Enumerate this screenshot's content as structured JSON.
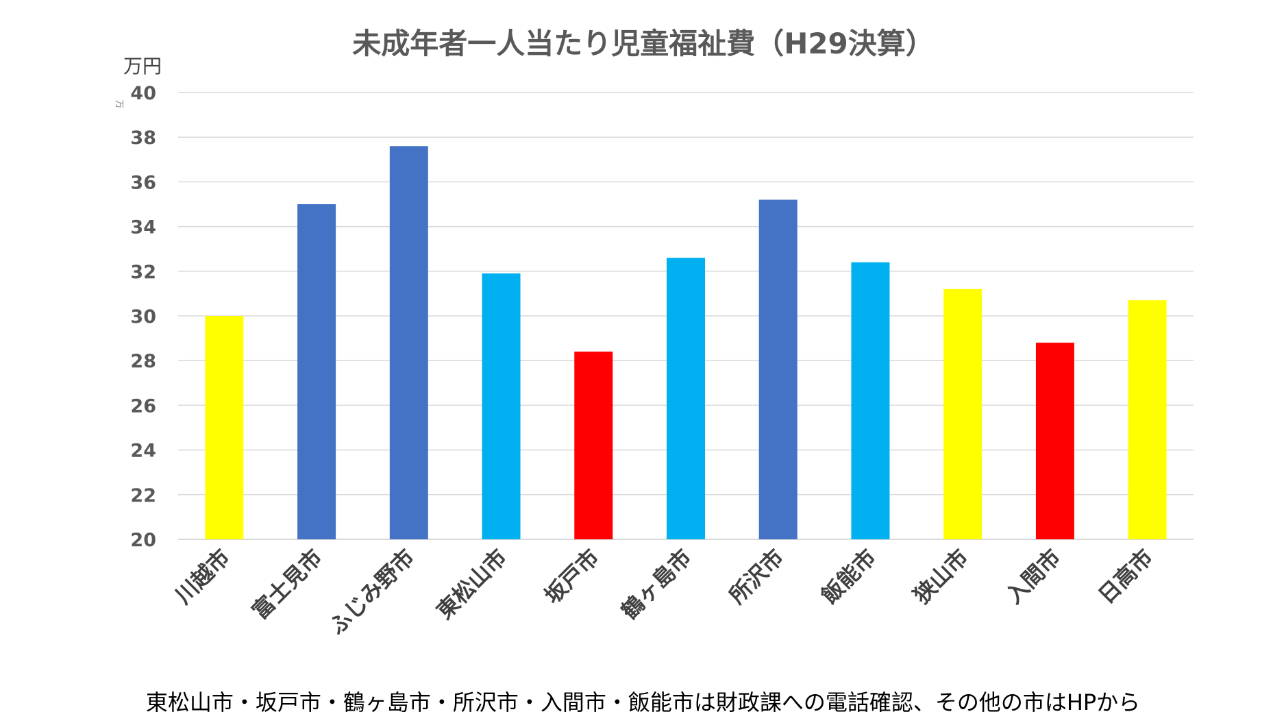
{
  "chart_data": {
    "type": "bar",
    "title": "未成年者一人当たり児童福祉費（H29決算）",
    "ylabel": "万円",
    "ylabel_small": "万",
    "ylim": [
      20,
      40
    ],
    "yticks": [
      20,
      22,
      24,
      26,
      28,
      30,
      32,
      34,
      36,
      38,
      40
    ],
    "grid": true,
    "categories": [
      "川越市",
      "富士見市",
      "ふじみ野市",
      "東松山市",
      "坂戸市",
      "鶴ヶ島市",
      "所沢市",
      "飯能市",
      "狭山市",
      "入間市",
      "日高市"
    ],
    "values": [
      30.0,
      35.0,
      37.6,
      31.9,
      28.4,
      32.6,
      35.2,
      32.4,
      31.2,
      28.8,
      30.7
    ],
    "bar_colors": [
      "#FFFF00",
      "#4472C4",
      "#4472C4",
      "#00B0F0",
      "#FF0000",
      "#00B0F0",
      "#4472C4",
      "#00B0F0",
      "#FFFF00",
      "#FF0000",
      "#FFFF00"
    ]
  },
  "footnote": "東松山市・坂戸市・鶴ヶ島市・所沢市・入間市・飯能市は財政課への電話確認、その他の市はHPから"
}
